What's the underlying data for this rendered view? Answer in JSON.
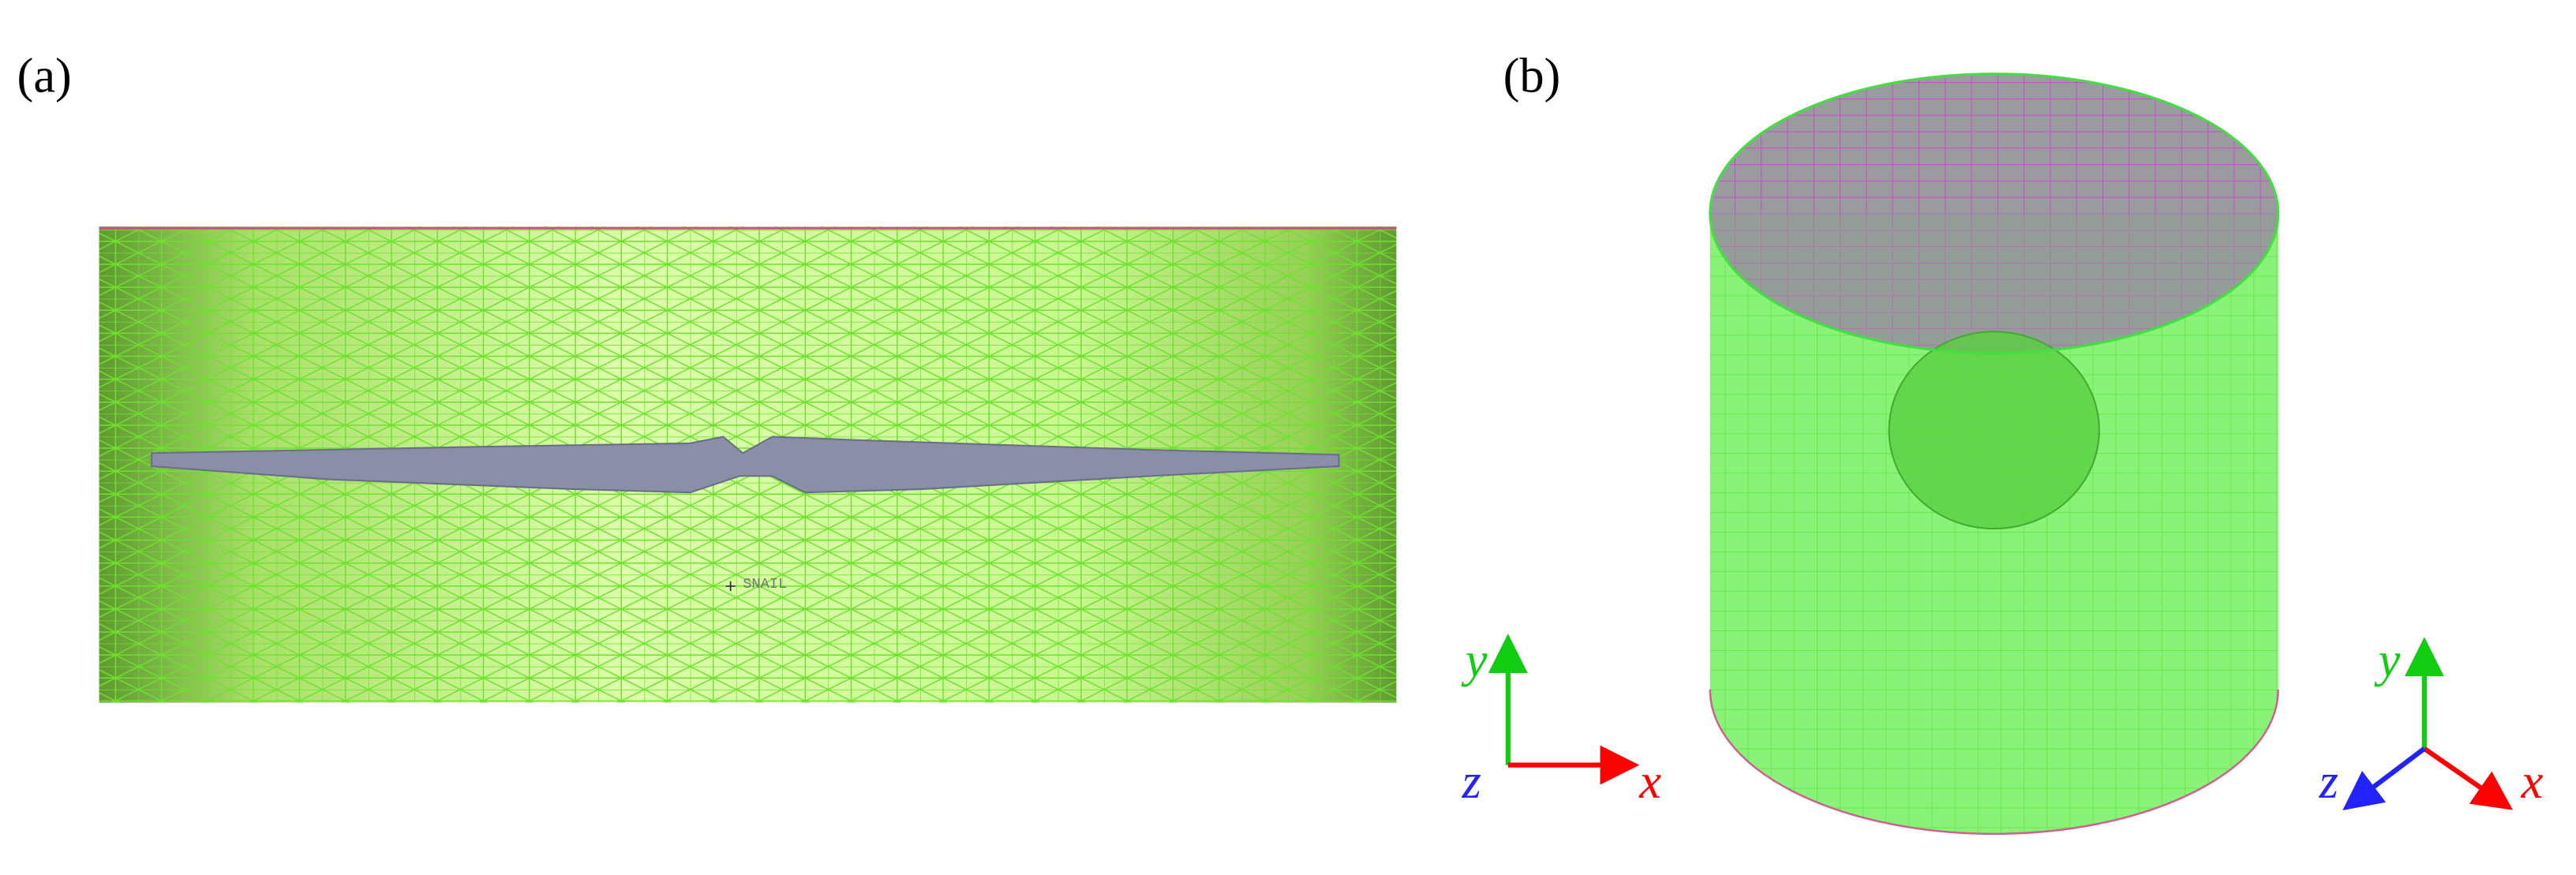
{
  "panels": [
    {
      "label": "(a)",
      "annotation": "SNAIL",
      "axes": {
        "x": "x",
        "y": "y",
        "z": "z"
      }
    },
    {
      "label": "(b)",
      "axes": {
        "x": "x",
        "y": "y",
        "z": "z"
      }
    }
  ]
}
